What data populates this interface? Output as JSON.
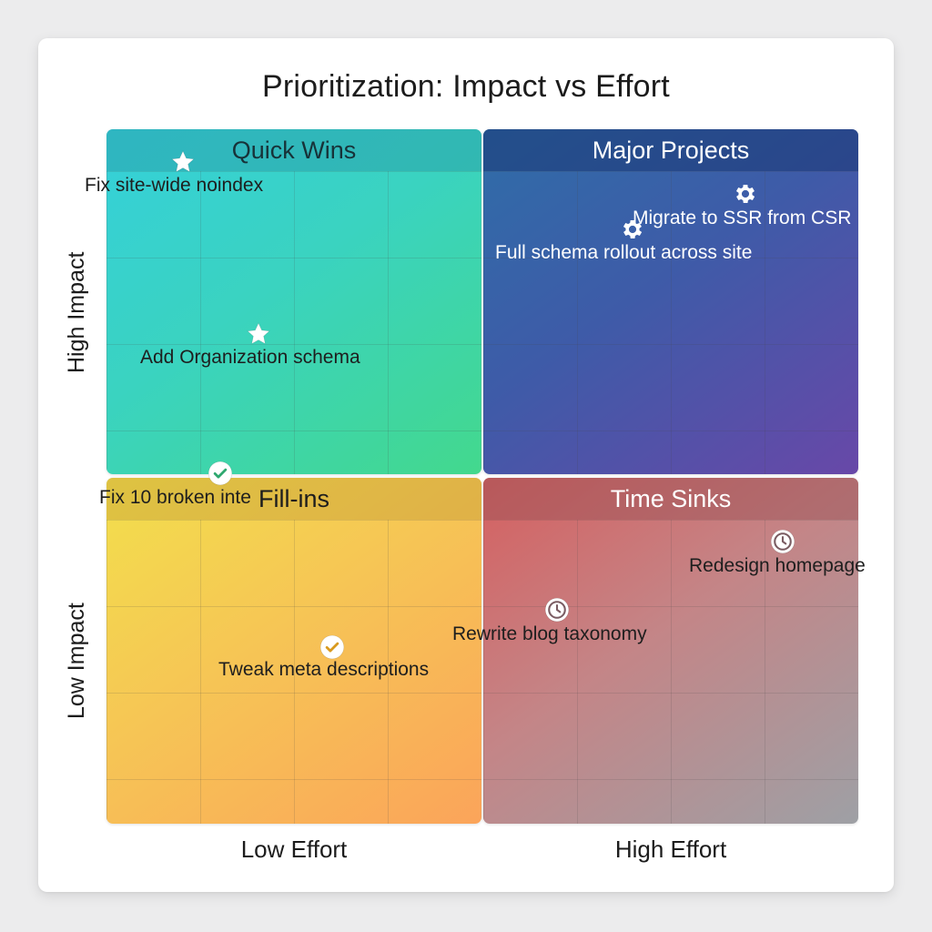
{
  "title": "Prioritization: Impact vs Effort",
  "axes": {
    "y_top": "High Impact",
    "y_bottom": "Low Impact",
    "x_left": "Low Effort",
    "x_right": "High Effort"
  },
  "quadrants": {
    "top_left": "Quick Wins",
    "top_right": "Major Projects",
    "bottom_left": "Fill-ins",
    "bottom_right": "Time Sinks"
  },
  "items": {
    "fix_noindex": {
      "label": "Fix site-wide noindex",
      "icon": "star-icon"
    },
    "org_schema": {
      "label": "Add Organization schema",
      "icon": "star-icon"
    },
    "migrate_ssr": {
      "label": "Migrate to SSR from CSR",
      "icon": "gear-icon"
    },
    "schema_rollout": {
      "label": "Full schema rollout across site",
      "icon": "gear-icon"
    },
    "broken_links": {
      "label": "Fix 10 broken inte",
      "icon": "check-icon"
    },
    "meta_desc": {
      "label": "Tweak meta descriptions",
      "icon": "check-icon"
    },
    "redesign_home": {
      "label": "Redesign homepage",
      "icon": "clock-icon"
    },
    "blog_taxonomy": {
      "label": "Rewrite blog taxonomy",
      "icon": "clock-icon"
    }
  },
  "colors": {
    "quick_wins": "#3ad3c0",
    "major_projects": "#3e5ba8",
    "fill_ins": "#f6c555",
    "time_sinks": "#c48587"
  }
}
